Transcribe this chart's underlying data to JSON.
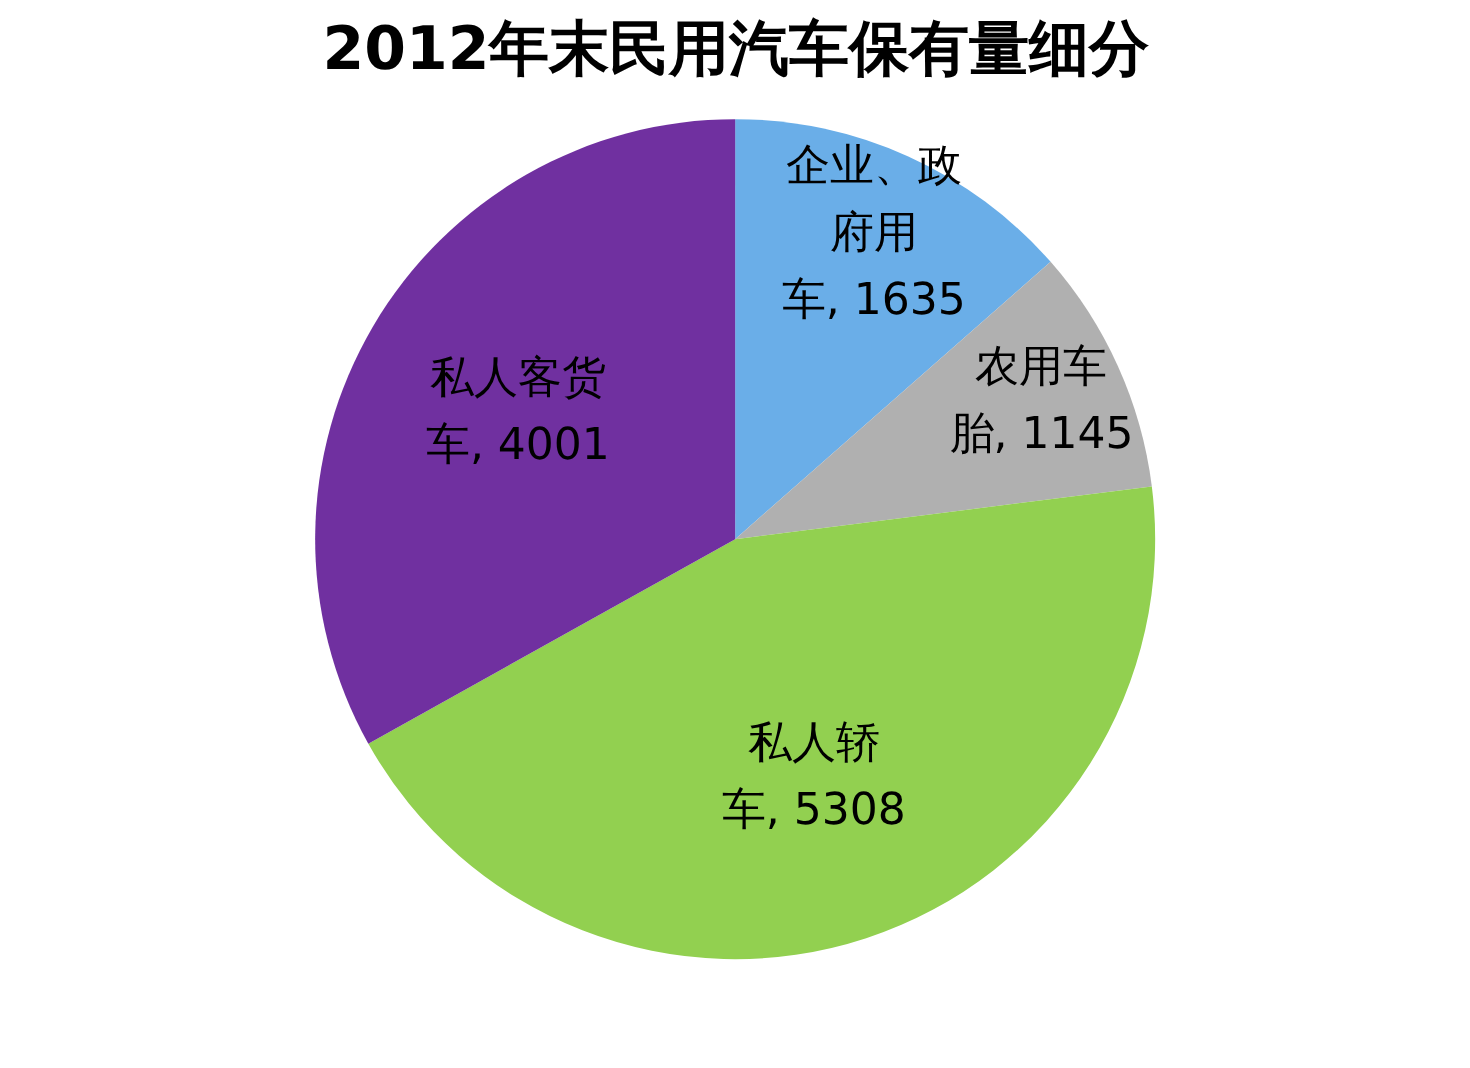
{
  "chart_data": {
    "type": "pie",
    "title": "2012年末民用汽车保有量细分",
    "categories": [
      "企业、政府用车",
      "农用车胎",
      "私人轿车",
      "私人客货车"
    ],
    "values": [
      1635,
      1145,
      5308,
      4001
    ],
    "colors": [
      "#6aaee8",
      "#b0b0b0",
      "#92d050",
      "#7030a0"
    ],
    "value_labels": [
      "1635",
      "1145",
      "5308",
      "4001"
    ]
  }
}
